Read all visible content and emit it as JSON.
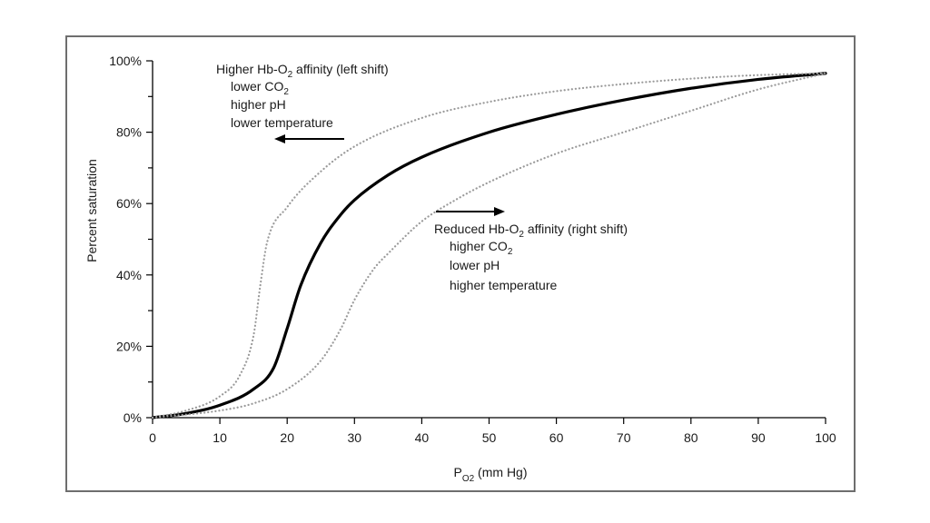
{
  "chart_data": {
    "type": "line",
    "xlabel": {
      "main": "P",
      "sub": "O2",
      "unit": " (mm Hg)"
    },
    "ylabel": "Percent saturation",
    "xlim": [
      0,
      100
    ],
    "ylim": [
      0,
      100
    ],
    "x_ticks": [
      0,
      10,
      20,
      30,
      40,
      50,
      60,
      70,
      80,
      90,
      100
    ],
    "y_ticks": [
      0,
      20,
      40,
      60,
      80,
      100
    ],
    "y_tick_labels": [
      "0%",
      "20%",
      "40%",
      "60%",
      "80%",
      "100%"
    ],
    "grid": false,
    "series": [
      {
        "style": "solid",
        "color": "#000000",
        "points": [
          [
            0,
            0
          ],
          [
            5,
            1.2
          ],
          [
            10,
            3.5
          ],
          [
            15,
            8
          ],
          [
            18,
            14
          ],
          [
            20,
            25
          ],
          [
            22,
            37
          ],
          [
            25,
            49
          ],
          [
            28,
            57
          ],
          [
            30,
            61
          ],
          [
            35,
            68
          ],
          [
            40,
            73
          ],
          [
            50,
            80
          ],
          [
            60,
            85
          ],
          [
            70,
            89
          ],
          [
            80,
            92.3
          ],
          [
            90,
            94.8
          ],
          [
            100,
            96.5
          ]
        ]
      },
      {
        "style": "dotted",
        "color": "#9a9a9a",
        "points": [
          [
            0,
            0
          ],
          [
            5,
            2
          ],
          [
            10,
            6
          ],
          [
            13,
            12
          ],
          [
            15,
            23
          ],
          [
            16,
            37
          ],
          [
            17,
            49
          ],
          [
            20,
            59
          ],
          [
            25,
            69
          ],
          [
            30,
            76
          ],
          [
            40,
            84
          ],
          [
            50,
            88.5
          ],
          [
            60,
            91.5
          ],
          [
            70,
            93.5
          ],
          [
            80,
            95
          ],
          [
            90,
            96
          ],
          [
            100,
            96.5
          ]
        ]
      },
      {
        "style": "dotted",
        "color": "#9a9a9a",
        "points": [
          [
            0,
            0
          ],
          [
            10,
            2
          ],
          [
            15,
            4
          ],
          [
            20,
            8
          ],
          [
            25,
            16
          ],
          [
            28,
            25
          ],
          [
            30,
            33
          ],
          [
            33,
            42
          ],
          [
            35,
            46
          ],
          [
            40,
            55
          ],
          [
            45,
            61
          ],
          [
            50,
            66
          ],
          [
            60,
            74
          ],
          [
            70,
            80
          ],
          [
            80,
            86
          ],
          [
            90,
            92
          ],
          [
            100,
            96.5
          ]
        ]
      }
    ],
    "annotations": {
      "left_shift": {
        "title_pre": "Higher Hb-O",
        "title_sub": "2",
        "title_post": " affinity (left shift)",
        "line1_pre": "lower CO",
        "line1_sub": "2",
        "line2": "higher pH",
        "line3": "lower temperature",
        "arrow_direction": "left"
      },
      "right_shift": {
        "title_pre": "Reduced Hb-O",
        "title_sub": "2",
        "title_post": " affinity (right shift)",
        "line1_pre": "higher CO",
        "line1_sub": "2",
        "line2": "lower pH",
        "line3": "higher temperature",
        "arrow_direction": "right"
      }
    }
  }
}
